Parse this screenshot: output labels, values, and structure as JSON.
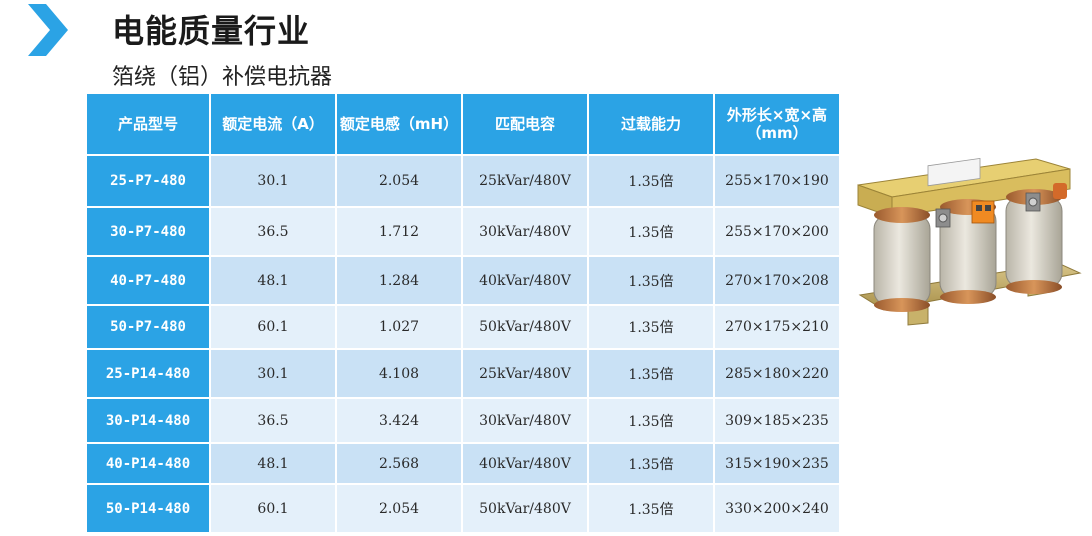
{
  "title": "电能质量行业",
  "subtitle": "箔绕（铝）补偿电抗器",
  "colors": {
    "accent": "#2ba3e5",
    "row_odd": "#c9e1f5",
    "row_even": "#e4f0fa"
  },
  "table": {
    "headers": [
      "产品型号",
      "额定电流（A）",
      "额定电感（mH）",
      "匹配电容",
      "过载能力",
      "外形长×宽×高（mm）"
    ],
    "rows": [
      {
        "model": "25-P7-480",
        "current": "30.1",
        "inductance": "2.054",
        "capacitor": "25kVar/480V",
        "overload": "1.35倍",
        "dimensions": "255×170×190"
      },
      {
        "model": "30-P7-480",
        "current": "36.5",
        "inductance": "1.712",
        "capacitor": "30kVar/480V",
        "overload": "1.35倍",
        "dimensions": "255×170×200"
      },
      {
        "model": "40-P7-480",
        "current": "48.1",
        "inductance": "1.284",
        "capacitor": "40kVar/480V",
        "overload": "1.35倍",
        "dimensions": "270×170×208"
      },
      {
        "model": "50-P7-480",
        "current": "60.1",
        "inductance": "1.027",
        "capacitor": "50kVar/480V",
        "overload": "1.35倍",
        "dimensions": "270×175×210"
      },
      {
        "model": "25-P14-480",
        "current": "30.1",
        "inductance": "4.108",
        "capacitor": "25kVar/480V",
        "overload": "1.35倍",
        "dimensions": "285×180×220"
      },
      {
        "model": "30-P14-480",
        "current": "36.5",
        "inductance": "3.424",
        "capacitor": "30kVar/480V",
        "overload": "1.35倍",
        "dimensions": "309×185×235"
      },
      {
        "model": "40-P14-480",
        "current": "48.1",
        "inductance": "2.568",
        "capacitor": "40kVar/480V",
        "overload": "1.35倍",
        "dimensions": "315×190×235"
      },
      {
        "model": "50-P14-480",
        "current": "60.1",
        "inductance": "2.054",
        "capacitor": "50kVar/480V",
        "overload": "1.35倍",
        "dimensions": "330×200×240"
      }
    ]
  }
}
